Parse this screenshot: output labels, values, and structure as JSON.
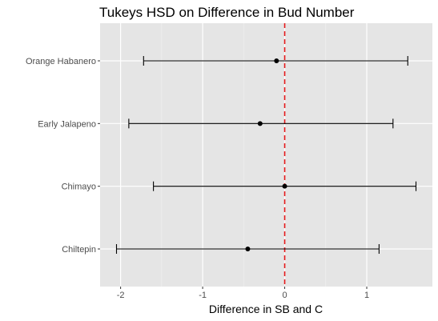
{
  "chart_data": {
    "type": "errorbar",
    "title": "Tukeys HSD on Difference in Bud Number",
    "xlabel": "Difference in SB and C",
    "ylabel": "",
    "xlim": [
      -2.25,
      1.8
    ],
    "x_ticks": [
      -2,
      -1,
      0,
      1
    ],
    "x_tick_labels": [
      "-2",
      "-1",
      "0",
      "1"
    ],
    "reference_line": {
      "x": 0,
      "style": "dashed",
      "color": "#e41a1c"
    },
    "grid": true,
    "panel_background": "#e5e5e5",
    "categories": [
      "Orange Habanero",
      "Early Jalapeno",
      "Chimayo",
      "Chiltepin"
    ],
    "estimate": [
      -0.1,
      -0.3,
      0.0,
      -0.45
    ],
    "lower": [
      -1.72,
      -1.9,
      -1.6,
      -2.05
    ],
    "upper": [
      1.5,
      1.32,
      1.6,
      1.15
    ]
  }
}
